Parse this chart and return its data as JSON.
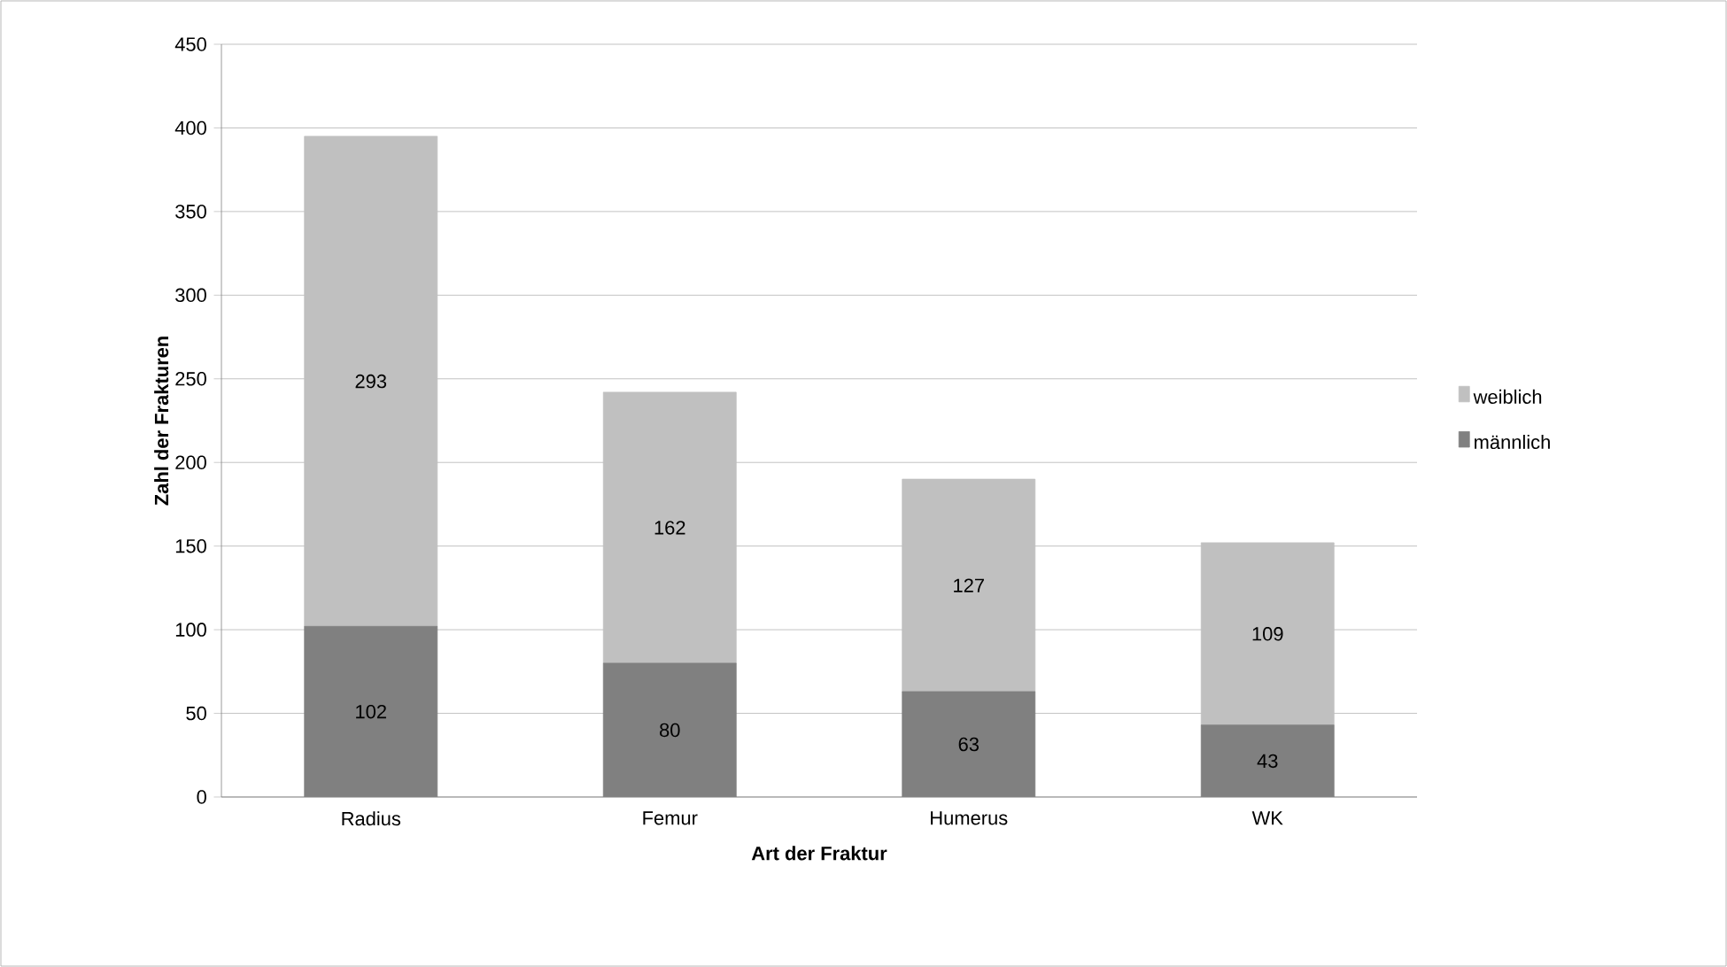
{
  "chart_data": {
    "type": "bar",
    "stacked": true,
    "xlabel": "Art der Fraktur",
    "ylabel": "Zahl der Frakturen",
    "categories": [
      "Radius",
      "Femur",
      "Humerus",
      "WK"
    ],
    "series": [
      {
        "name": "männlich",
        "color": "#808080",
        "values": [
          102,
          80,
          63,
          43
        ]
      },
      {
        "name": "weiblich",
        "color": "#c0c0c0",
        "values": [
          293,
          162,
          127,
          109
        ]
      }
    ],
    "ylim": [
      0,
      450
    ],
    "yticks": [
      0,
      50,
      100,
      150,
      200,
      250,
      300,
      350,
      400,
      450
    ],
    "grid": "y",
    "legend": "right",
    "data_labels": true
  }
}
